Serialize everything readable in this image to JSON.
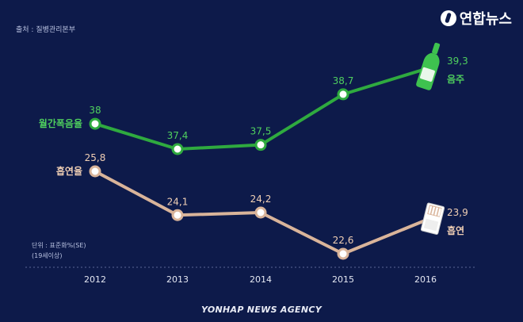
{
  "header": {
    "source": "출처 : 질병관리본부",
    "logo_text": "연합뉴스",
    "logo_icon": "yonhap-logo-icon"
  },
  "unit": {
    "line1": "단위 : 표준화%(SE)",
    "line2": "(19세이상)"
  },
  "footer": {
    "agency": "YONHAP NEWS AGENCY"
  },
  "colors": {
    "background": "#0d1a4a",
    "drinking": "#2faa3f",
    "drinking_label": "#4fd05e",
    "smoking": "#d9b49a",
    "smoking_label": "#f0cfb4",
    "axis_text": "#e4e7f2"
  },
  "chart_data": {
    "type": "line",
    "x": [
      "2012",
      "2013",
      "2014",
      "2015",
      "2016"
    ],
    "series": [
      {
        "name": "월간폭음율",
        "end_label": "음주",
        "icon": "soju-bottle-icon",
        "values": [
          38,
          37.4,
          37.5,
          38.7,
          39.3
        ],
        "value_labels": [
          "38",
          "37,4",
          "37,5",
          "38,7",
          "39,3"
        ]
      },
      {
        "name": "흡연율",
        "end_label": "흡연",
        "icon": "cigarette-pack-icon",
        "values": [
          25.8,
          24.1,
          24.2,
          22.6,
          23.9
        ],
        "value_labels": [
          "25,8",
          "24,1",
          "24,2",
          "22,6",
          "23,9"
        ]
      }
    ],
    "grid": false,
    "legend": "inline"
  }
}
